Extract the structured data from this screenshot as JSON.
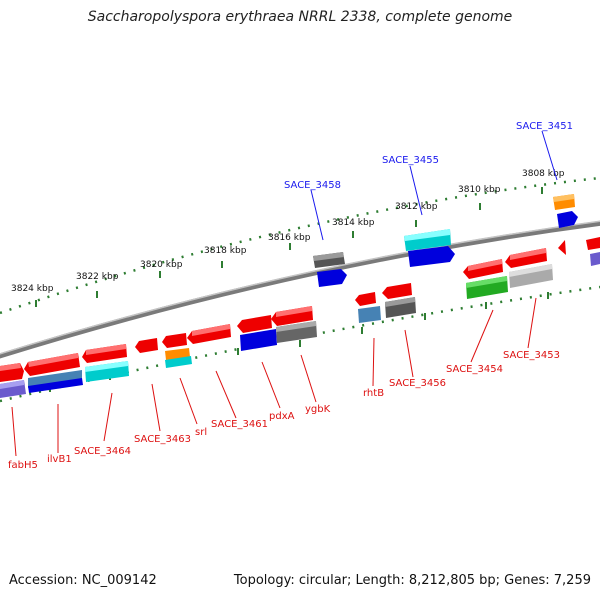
{
  "title": "Saccharopolyspora erythraea NRRL 2338, complete genome",
  "footer": {
    "accession": "Accession: NC_009142",
    "topology": "Topology: circular; Length: 8,212,805 bp; Genes: 7,259"
  },
  "colors": {
    "backbone": "#808080",
    "tick": "#2e7d32",
    "label_top": "#1a1aee",
    "label_bottom": "#dd1111"
  },
  "kbp_labels": [
    "3824 kbp",
    "3822 kbp",
    "3820 kbp",
    "3818 kbp",
    "3816 kbp",
    "3814 kbp",
    "3812 kbp",
    "3810 kbp",
    "3808 kbp"
  ],
  "gene_labels_top": [
    "SACE_3458",
    "SACE_3455",
    "SACE_3451"
  ],
  "gene_labels_bottom": [
    "fabH5",
    "ilvB1",
    "SACE_3464",
    "SACE_3463",
    "srl",
    "SACE_3461",
    "pdxA",
    "ygbK",
    "rhtB",
    "SACE_3456",
    "SACE_3454",
    "SACE_3453"
  ]
}
